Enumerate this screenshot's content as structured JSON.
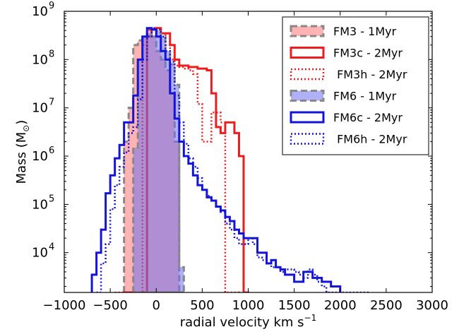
{
  "chart_data": {
    "type": "histogram",
    "xlabel": "radial velocity km s",
    "xlabel_sup": "−1",
    "ylabel": "Mass (M",
    "ylabel_sub": "⊙",
    "ylabel_close": ")",
    "xlim": [
      -1000,
      3000
    ],
    "ylim": [
      1500,
      1000000000
    ],
    "yscale": "log",
    "grid": false,
    "legend_position": "top-right",
    "x_ticks": [
      {
        "value": -1000,
        "label": "−1000"
      },
      {
        "value": -500,
        "label": "−500"
      },
      {
        "value": 0,
        "label": "0"
      },
      {
        "value": 500,
        "label": "500"
      },
      {
        "value": 1000,
        "label": "1000"
      },
      {
        "value": 1500,
        "label": "1500"
      },
      {
        "value": 2000,
        "label": "2000"
      },
      {
        "value": 2500,
        "label": "2500"
      },
      {
        "value": 3000,
        "label": "3000"
      }
    ],
    "y_ticks": [
      {
        "value": 10000,
        "base": "10",
        "exp": "4"
      },
      {
        "value": 100000,
        "base": "10",
        "exp": "5"
      },
      {
        "value": 1000000,
        "base": "10",
        "exp": "6"
      },
      {
        "value": 10000000,
        "base": "10",
        "exp": "7"
      },
      {
        "value": 100000000,
        "base": "10",
        "exp": "8"
      },
      {
        "value": 1000000000,
        "base": "10",
        "exp": "9"
      }
    ],
    "series": [
      {
        "name": "FM3 - 1Myr",
        "style": "filled",
        "fill": "#ff8080",
        "fill_opacity": 0.6,
        "edge": "#888888",
        "dash": "9,5",
        "stroke_width": 3,
        "edges": [
          -350,
          -300,
          -250,
          -200,
          -150,
          -100,
          -50,
          0,
          50,
          100,
          150,
          200,
          250,
          300
        ],
        "values": [
          2000000,
          10000000,
          200000000,
          250000000,
          280000000,
          420000000,
          300000000,
          150000000,
          100000000,
          60000000,
          20000000,
          2000000,
          1500
        ]
      },
      {
        "name": "FM3c - 2Myr",
        "style": "step",
        "stroke": "#ee1c1c",
        "dash": "",
        "stroke_width": 3,
        "edges": [
          -350,
          -300,
          -250,
          -200,
          -150,
          -100,
          -50,
          0,
          50,
          100,
          150,
          200,
          250,
          300,
          350,
          400,
          450,
          500,
          550,
          600,
          650,
          700,
          750,
          800,
          850,
          900,
          950,
          1000
        ],
        "values": [
          1500,
          1500,
          1500,
          1500,
          1500,
          300000000,
          420000000,
          450000000,
          350000000,
          350000000,
          200000000,
          100000000,
          75000000,
          75000000,
          70000000,
          70000000,
          65000000,
          65000000,
          60000000,
          20000000,
          4000000,
          3000000,
          5000000,
          5000000,
          3000000,
          1000000,
          1500
        ]
      },
      {
        "name": " FM3h - 2Myr",
        "style": "step",
        "stroke": "#ee1c1c",
        "dash": "2,3",
        "stroke_width": 2.5,
        "edges": [
          -450,
          -400,
          -350,
          -300,
          -250,
          -200,
          -150,
          -100,
          -50,
          0,
          50,
          100,
          150,
          200,
          250,
          300,
          350,
          400,
          450,
          500,
          550,
          600,
          650,
          700,
          750,
          800,
          850,
          900
        ],
        "values": [
          1500,
          1500,
          1500,
          1500,
          1500,
          1500,
          200000000,
          420000000,
          450000000,
          350000000,
          350000000,
          200000000,
          100000000,
          75000000,
          70000000,
          65000000,
          60000000,
          50000000,
          12000000,
          2000000,
          2000000,
          8000000,
          8000000,
          5000000,
          1500,
          1500,
          1500
        ]
      },
      {
        "name": "FM6 - 1Myr",
        "style": "filled",
        "fill": "#7070ee",
        "fill_opacity": 0.55,
        "edge": "#888888",
        "dash": "9,5",
        "stroke_width": 3,
        "edges": [
          -250,
          -200,
          -150,
          -100,
          -50,
          0,
          50,
          100,
          150,
          200,
          250,
          300
        ],
        "values": [
          1500000,
          100000000,
          300000000,
          350000000,
          300000000,
          400000000,
          300000000,
          150000000,
          80000000,
          30000000,
          5000
        ]
      },
      {
        "name": "FM6c - 2Myr",
        "style": "step",
        "stroke": "#1414d9",
        "dash": "",
        "stroke_width": 3,
        "edges": [
          -700,
          -650,
          -600,
          -550,
          -500,
          -450,
          -400,
          -350,
          -300,
          -250,
          -200,
          -150,
          -100,
          -50,
          0,
          50,
          100,
          150,
          200,
          250,
          300,
          350,
          400,
          450,
          500,
          550,
          600,
          650,
          700,
          750,
          800,
          850,
          900,
          950,
          1000,
          1050,
          1100,
          1150,
          1200,
          1250,
          1300,
          1350,
          1400,
          1450,
          1500,
          1550,
          1600,
          1650,
          1700,
          1750,
          1800,
          1850,
          1900,
          1950,
          2000
        ],
        "values": [
          3500,
          10000,
          30000,
          170000,
          400000,
          900000,
          1700000,
          5000000,
          5000000,
          18000000,
          100000000,
          300000000,
          450000000,
          420000000,
          300000000,
          150000000,
          100000000,
          20000000,
          6000000,
          2000000,
          1000000,
          700000,
          400000,
          250000,
          200000,
          140000,
          120000,
          90000,
          75000,
          55000,
          45000,
          30000,
          25000,
          20000,
          20000,
          20000,
          10000,
          10000,
          6000,
          7000,
          5000,
          4500,
          3500,
          3500,
          2500,
          2500,
          4000,
          4000,
          3000,
          3000,
          2500,
          2500,
          2000,
          2000
        ]
      },
      {
        "name": " FM6h - 2Myr",
        "style": "step",
        "stroke": "#1414d9",
        "dash": "2,3",
        "stroke_width": 2.5,
        "edges": [
          -650,
          -600,
          -550,
          -500,
          -450,
          -400,
          -350,
          -300,
          -250,
          -200,
          -150,
          -100,
          -50,
          0,
          50,
          100,
          150,
          200,
          250,
          300,
          350,
          400,
          450,
          500,
          550,
          600,
          650,
          700,
          750,
          800,
          850,
          900,
          950,
          1000,
          1050,
          1100,
          1150,
          1200,
          1250,
          1300,
          1350,
          1400,
          1450,
          1500,
          1550,
          1600,
          1650,
          1700,
          1750,
          1800,
          1850,
          1900,
          1950,
          2000,
          2050,
          2100,
          2150,
          2200,
          2250,
          2300
        ],
        "values": [
          1500,
          6000,
          15000,
          80000,
          250000,
          600000,
          1200000,
          3000000,
          4000000,
          15000000,
          100000000,
          300000000,
          450000000,
          420000000,
          300000000,
          150000000,
          90000000,
          18000000,
          5000000,
          1800000,
          900000,
          600000,
          350000,
          200000,
          150000,
          120000,
          90000,
          70000,
          40000,
          30000,
          20000,
          15000,
          15000,
          20000,
          15000,
          8000,
          7000,
          6000,
          5000,
          5000,
          4000,
          4500,
          4500,
          4000,
          3500,
          3000,
          4500,
          3500,
          2500,
          2000,
          1500,
          1500,
          1500,
          1500,
          1500,
          1500,
          1500,
          1500,
          1500
        ]
      }
    ]
  }
}
